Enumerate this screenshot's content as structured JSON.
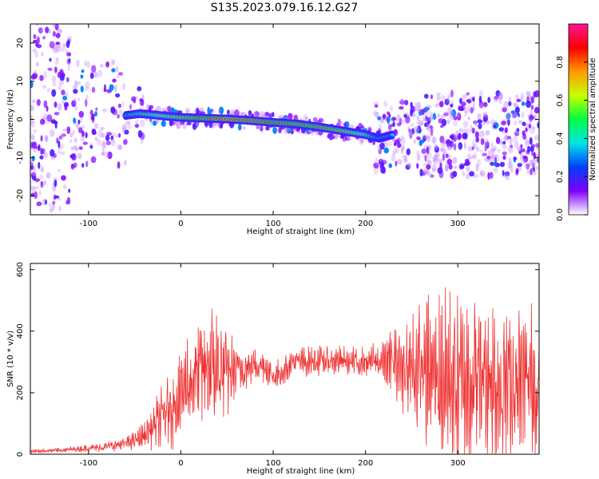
{
  "figure": {
    "title": "S135.2023.079.16.12.G27"
  },
  "chart_data": [
    {
      "type": "heatmap",
      "title": "",
      "xlabel": "Height of straight line (km)",
      "ylabel": "Frequency (Hz)",
      "xlim": [
        -163,
        388
      ],
      "ylim": [
        -25,
        25
      ],
      "x_ticks": [
        -100,
        0,
        100,
        200,
        300
      ],
      "y_ticks": [
        -20,
        -10,
        0,
        10,
        20
      ],
      "colorbar": {
        "label": "Normalized spectral amplitude",
        "range": [
          0.0,
          1.0
        ],
        "ticks": [
          0.0,
          0.2,
          0.4,
          0.6,
          0.8
        ],
        "colormap": "rainbow",
        "colors": [
          "#ffffff",
          "#7f00ff",
          "#0040ff",
          "#00e5e5",
          "#00ff40",
          "#c8ff00",
          "#ff9900",
          "#ff0000",
          "#ff1493"
        ]
      },
      "ridge": {
        "x": [
          -60,
          -45,
          -30,
          -15,
          0,
          25,
          50,
          75,
          100,
          125,
          150,
          175,
          200,
          215,
          230
        ],
        "freq": [
          1,
          1.5,
          1.2,
          0.8,
          0.5,
          0.3,
          0.1,
          -0.3,
          -0.8,
          -1.2,
          -2,
          -3,
          -4,
          -5,
          -4
        ],
        "amplitude": [
          0.45,
          0.55,
          0.6,
          0.65,
          0.75,
          0.85,
          0.95,
          0.9,
          0.85,
          0.8,
          0.8,
          0.75,
          0.6,
          0.4,
          0.35
        ]
      }
    },
    {
      "type": "line",
      "title": "",
      "xlabel": "Height of straight line (km)",
      "ylabel": "SNR (10 * v/v)",
      "xlim": [
        -163,
        388
      ],
      "ylim": [
        0,
        620
      ],
      "x_ticks": [
        -100,
        0,
        100,
        200,
        300
      ],
      "y_ticks": [
        0,
        200,
        400,
        600
      ],
      "series": [
        {
          "color": "#ee3333",
          "envelope": {
            "x": [
              -163,
              -140,
              -120,
              -100,
              -80,
              -60,
              -50,
              -40,
              -30,
              -20,
              -10,
              0,
              10,
              20,
              30,
              40,
              50,
              60,
              70,
              80,
              90,
              100,
              110,
              120,
              130,
              140,
              150,
              160,
              170,
              180,
              190,
              200,
              210,
              220,
              230,
              240,
              250,
              260,
              270,
              280,
              290,
              300,
              310,
              320,
              330,
              340,
              350,
              360,
              370,
              388
            ],
            "mean": [
              10,
              12,
              15,
              20,
              25,
              35,
              45,
              60,
              90,
              120,
              150,
              200,
              240,
              260,
              280,
              270,
              260,
              270,
              280,
              290,
              290,
              250,
              270,
              300,
              300,
              300,
              305,
              300,
              305,
              300,
              300,
              300,
              300,
              300,
              300,
              290,
              280,
              270,
              260,
              250,
              240,
              230,
              240,
              250,
              250,
              240,
              230,
              230,
              230,
              230
            ],
            "amp": [
              5,
              6,
              8,
              10,
              15,
              20,
              25,
              40,
              60,
              90,
              110,
              120,
              140,
              170,
              180,
              170,
              120,
              80,
              60,
              50,
              45,
              40,
              40,
              40,
              40,
              40,
              40,
              40,
              40,
              40,
              40,
              45,
              55,
              70,
              90,
              130,
              170,
              200,
              220,
              230,
              240,
              250,
              260,
              260,
              260,
              250,
              240,
              230,
              220,
              210
            ]
          }
        }
      ]
    }
  ]
}
